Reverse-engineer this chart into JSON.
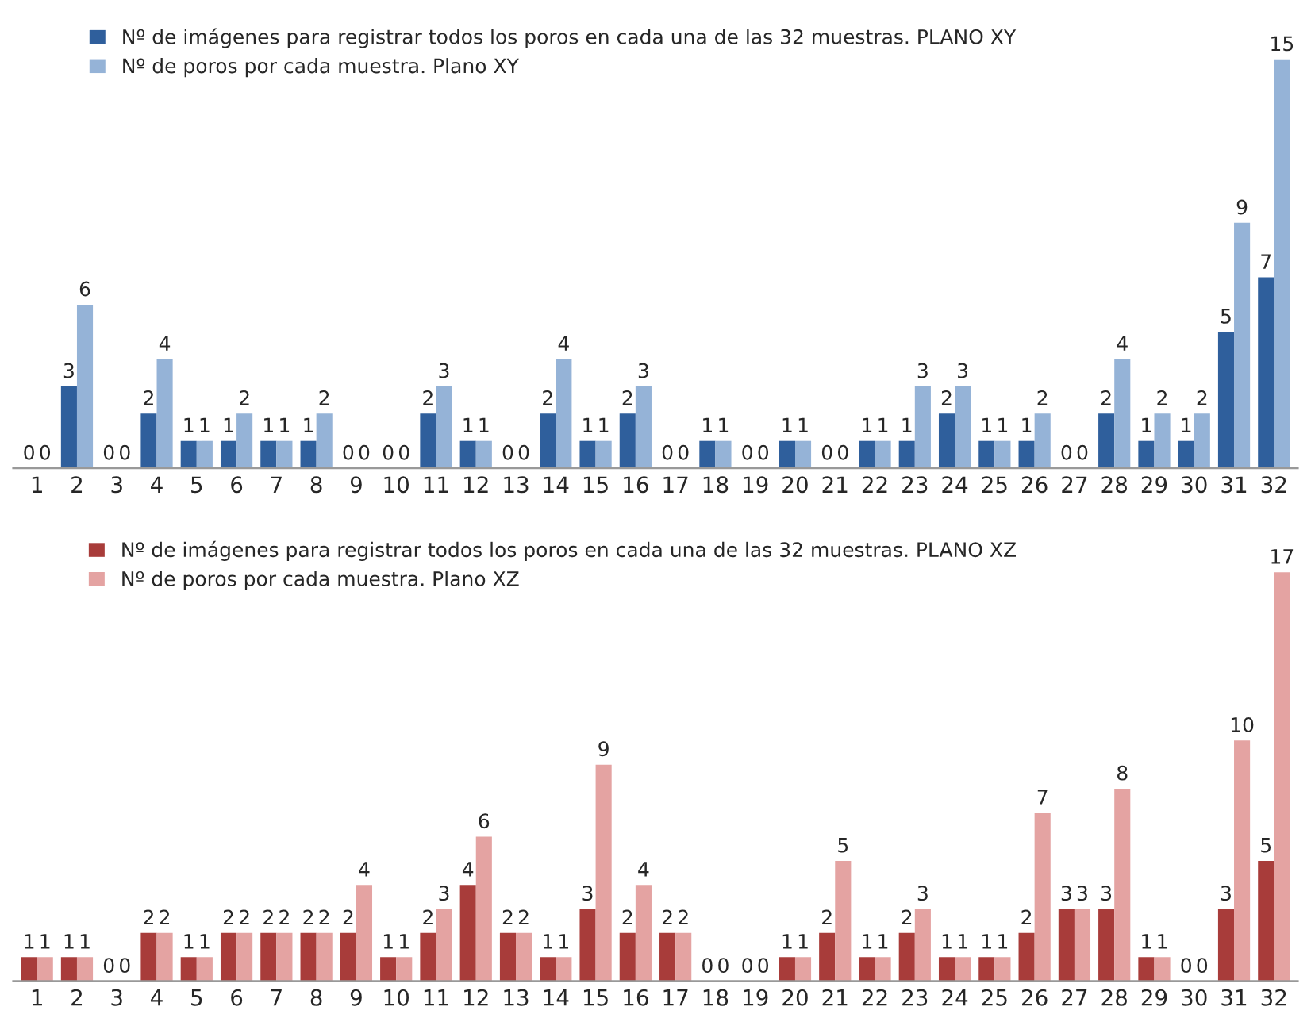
{
  "chart_data": [
    {
      "type": "bar",
      "categories": [
        "1",
        "2",
        "3",
        "4",
        "5",
        "6",
        "7",
        "8",
        "9",
        "10",
        "11",
        "12",
        "13",
        "14",
        "15",
        "16",
        "17",
        "18",
        "19",
        "20",
        "21",
        "22",
        "23",
        "24",
        "25",
        "26",
        "27",
        "28",
        "29",
        "30",
        "31",
        "32"
      ],
      "series": [
        {
          "name": "Nº de imágenes para registrar todos los poros en cada una de las 32 muestras. PLANO XY",
          "color": "#2f5f9c",
          "values": [
            0,
            3,
            0,
            2,
            1,
            1,
            1,
            1,
            0,
            0,
            2,
            1,
            0,
            2,
            1,
            2,
            0,
            1,
            0,
            1,
            0,
            1,
            1,
            2,
            1,
            1,
            0,
            2,
            1,
            1,
            5,
            7
          ]
        },
        {
          "name": "Nº de poros por cada muestra. Plano XY",
          "color": "#95b3d7",
          "values": [
            0,
            6,
            0,
            4,
            1,
            2,
            1,
            2,
            0,
            0,
            3,
            1,
            0,
            4,
            1,
            3,
            0,
            1,
            0,
            1,
            0,
            1,
            3,
            3,
            1,
            2,
            0,
            4,
            2,
            2,
            9,
            15
          ]
        }
      ],
      "data_labels": true,
      "legend": "top",
      "grid": false,
      "tick_labels": "x"
    },
    {
      "type": "bar",
      "categories": [
        "1",
        "2",
        "3",
        "4",
        "5",
        "6",
        "7",
        "8",
        "9",
        "10",
        "11",
        "12",
        "13",
        "14",
        "15",
        "16",
        "17",
        "18",
        "19",
        "20",
        "21",
        "22",
        "23",
        "24",
        "25",
        "26",
        "27",
        "28",
        "29",
        "30",
        "31",
        "32"
      ],
      "series": [
        {
          "name": "Nº de imágenes para registrar todos los poros en cada una de las 32 muestras. PLANO XZ",
          "color": "#a83c3a",
          "values": [
            1,
            1,
            0,
            2,
            1,
            2,
            2,
            2,
            2,
            1,
            2,
            4,
            2,
            1,
            3,
            2,
            2,
            0,
            0,
            1,
            2,
            1,
            2,
            1,
            1,
            2,
            3,
            3,
            1,
            0,
            3,
            5
          ]
        },
        {
          "name": "Nº de poros por cada muestra. Plano XZ",
          "color": "#e4a3a2",
          "values": [
            1,
            1,
            0,
            2,
            1,
            2,
            2,
            2,
            4,
            1,
            3,
            6,
            2,
            1,
            9,
            4,
            2,
            0,
            0,
            1,
            5,
            1,
            3,
            1,
            1,
            7,
            3,
            8,
            1,
            0,
            10,
            17
          ]
        }
      ],
      "data_labels": true,
      "legend": "top",
      "grid": false,
      "tick_labels": "x"
    }
  ]
}
